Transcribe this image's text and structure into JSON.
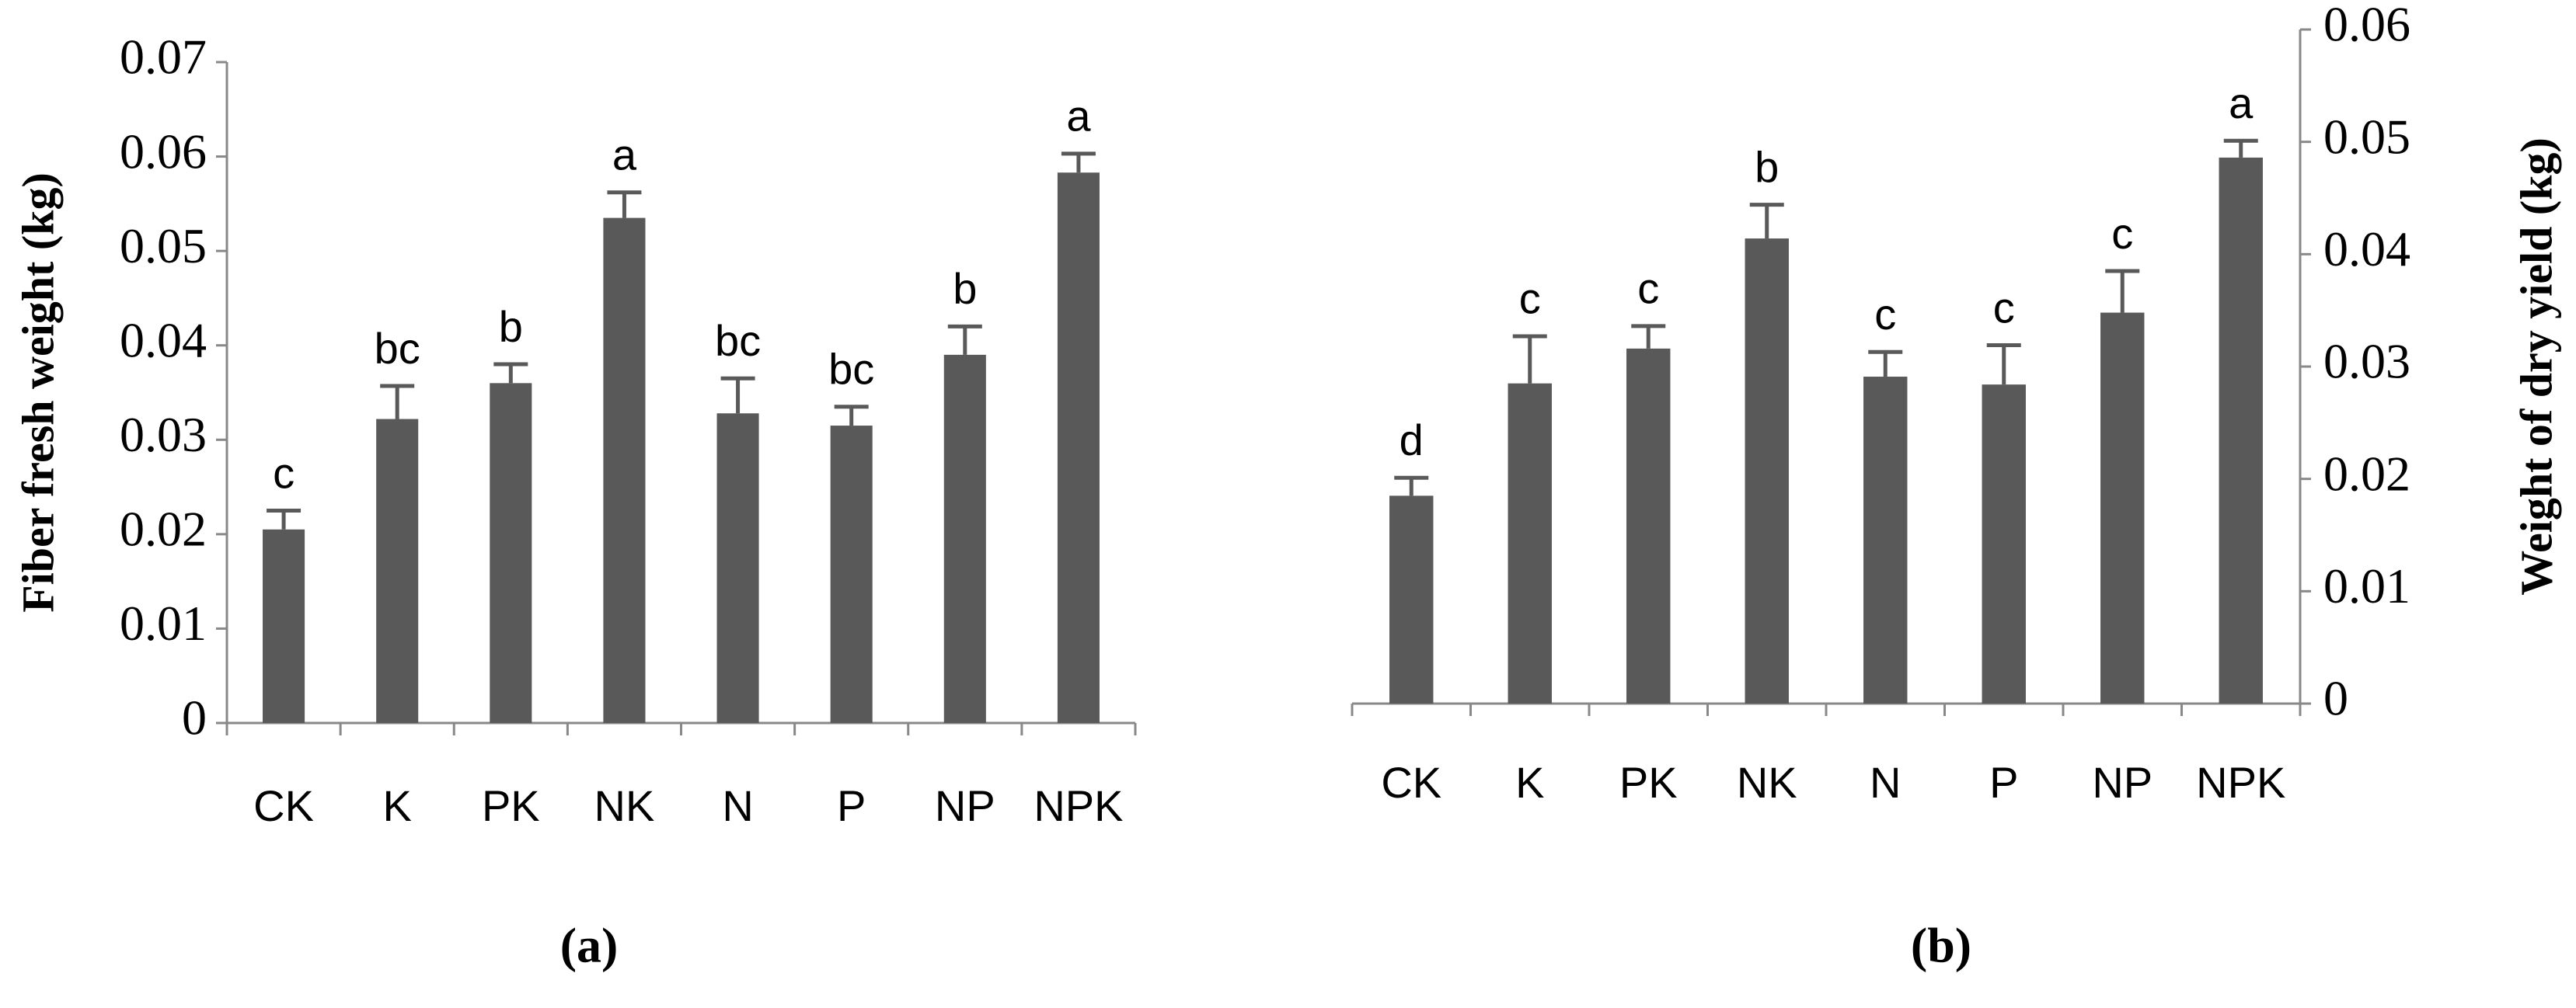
{
  "chart_data": [
    {
      "type": "bar",
      "caption": "(a)",
      "ylabel": "Fiber fresh  weight (kg)",
      "axis_side": "left",
      "color": "#595959",
      "categories": [
        "CK",
        "K",
        "PK",
        "NK",
        "N",
        "P",
        "NP",
        "NPK"
      ],
      "values": [
        0.0205,
        0.0322,
        0.036,
        0.0535,
        0.0328,
        0.0315,
        0.039,
        0.0583
      ],
      "errors": [
        0.002,
        0.0035,
        0.002,
        0.0027,
        0.0037,
        0.002,
        0.003,
        0.002
      ],
      "letters": [
        "c",
        "bc",
        "b",
        "a",
        "bc",
        "bc",
        "b",
        "a"
      ],
      "ylim": [
        0,
        0.07
      ],
      "yticks": [
        0,
        0.01,
        0.02,
        0.03,
        0.04,
        0.05,
        0.06,
        0.07
      ]
    },
    {
      "type": "bar",
      "caption": "(b)",
      "ylabel": "Weight of dry yield (kg)",
      "axis_side": "right",
      "color": "#595959",
      "categories": [
        "CK",
        "K",
        "PK",
        "NK",
        "N",
        "P",
        "NP",
        "NPK"
      ],
      "values": [
        0.0185,
        0.0285,
        0.0316,
        0.0414,
        0.0291,
        0.0284,
        0.0348,
        0.0486
      ],
      "errors": [
        0.0016,
        0.0042,
        0.002,
        0.003,
        0.0022,
        0.0035,
        0.0037,
        0.0015
      ],
      "letters": [
        "d",
        "c",
        "c",
        "b",
        "c",
        "c",
        "c",
        "a"
      ],
      "ylim": [
        0,
        0.06
      ],
      "yticks": [
        0,
        0.01,
        0.02,
        0.03,
        0.04,
        0.05,
        0.06
      ]
    }
  ]
}
